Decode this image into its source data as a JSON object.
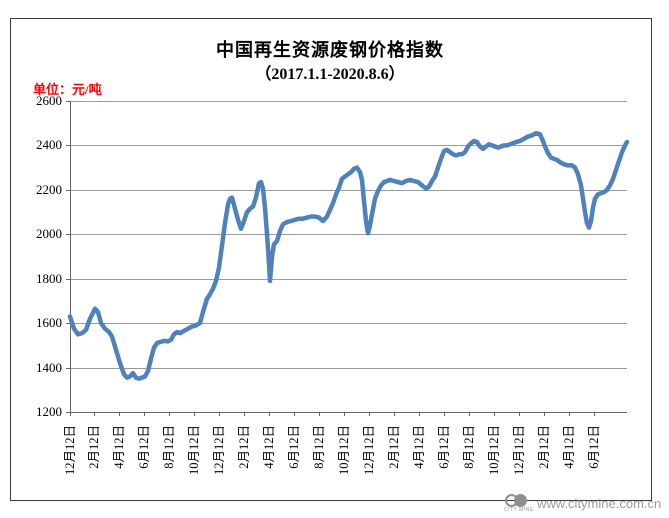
{
  "title": {
    "line1": "中国再生资源废钢价格指数",
    "line2": "（2017.1.1-2020.8.6）"
  },
  "unit_label": "单位：元/吨",
  "unit_label_color": "#ff0000",
  "watermark": {
    "logo_text": "CITY MINE",
    "url": "www.citymine.com.cn"
  },
  "chart_data": {
    "type": "line",
    "title": "中国再生资源废钢价格指数",
    "subtitle": "（2017.1.1-2020.8.6）",
    "ylabel": "元/吨",
    "ylim": [
      1200,
      2600
    ],
    "y_ticks": [
      2600,
      2400,
      2200,
      2000,
      1800,
      1600,
      1400,
      1200
    ],
    "grid": "horizontal",
    "legend": "none",
    "line_color": "#4F81BD",
    "x_tick_labels": [
      "12月12日",
      "2月12日",
      "4月12日",
      "6月12日",
      "8月12日",
      "10月12日",
      "12月12日",
      "2月12日",
      "4月12日",
      "6月12日",
      "8月12日",
      "10月12日",
      "12月12日",
      "2月12日",
      "4月12日",
      "6月12日",
      "8月12日",
      "10月12日",
      "12月12日",
      "2月12日",
      "4月12日",
      "6月12日"
    ],
    "x_tick_positions": [
      0.0,
      0.0431,
      0.088,
      0.1329,
      0.1777,
      0.2226,
      0.2675,
      0.3124,
      0.3572,
      0.4022,
      0.447,
      0.4919,
      0.5368,
      0.5817,
      0.6266,
      0.6715,
      0.7164,
      0.7612,
      0.8061,
      0.851,
      0.8959,
      0.9408
    ],
    "series": [
      {
        "name": "废钢价格指数",
        "points": [
          [
            0.0,
            1630
          ],
          [
            0.0072,
            1575
          ],
          [
            0.0144,
            1550
          ],
          [
            0.0215,
            1555
          ],
          [
            0.0287,
            1570
          ],
          [
            0.0359,
            1620
          ],
          [
            0.0449,
            1665
          ],
          [
            0.0503,
            1650
          ],
          [
            0.0557,
            1600
          ],
          [
            0.0628,
            1575
          ],
          [
            0.07,
            1560
          ],
          [
            0.0754,
            1540
          ],
          [
            0.0826,
            1480
          ],
          [
            0.0898,
            1420
          ],
          [
            0.0969,
            1370
          ],
          [
            0.1023,
            1355
          ],
          [
            0.1077,
            1360
          ],
          [
            0.1131,
            1375
          ],
          [
            0.1185,
            1355
          ],
          [
            0.1239,
            1350
          ],
          [
            0.1293,
            1355
          ],
          [
            0.1347,
            1360
          ],
          [
            0.14,
            1385
          ],
          [
            0.1454,
            1440
          ],
          [
            0.1508,
            1490
          ],
          [
            0.1562,
            1510
          ],
          [
            0.1616,
            1515
          ],
          [
            0.1688,
            1520
          ],
          [
            0.176,
            1518
          ],
          [
            0.1813,
            1525
          ],
          [
            0.1867,
            1550
          ],
          [
            0.1921,
            1560
          ],
          [
            0.1975,
            1555
          ],
          [
            0.2047,
            1565
          ],
          [
            0.2118,
            1575
          ],
          [
            0.219,
            1585
          ],
          [
            0.2262,
            1590
          ],
          [
            0.2334,
            1600
          ],
          [
            0.2388,
            1650
          ],
          [
            0.246,
            1710
          ],
          [
            0.2513,
            1730
          ],
          [
            0.2567,
            1755
          ],
          [
            0.2621,
            1790
          ],
          [
            0.2675,
            1850
          ],
          [
            0.2729,
            1950
          ],
          [
            0.2783,
            2050
          ],
          [
            0.2837,
            2135
          ],
          [
            0.2873,
            2160
          ],
          [
            0.2909,
            2165
          ],
          [
            0.2962,
            2115
          ],
          [
            0.3016,
            2065
          ],
          [
            0.307,
            2025
          ],
          [
            0.3124,
            2060
          ],
          [
            0.3178,
            2100
          ],
          [
            0.3232,
            2115
          ],
          [
            0.3286,
            2125
          ],
          [
            0.3339,
            2165
          ],
          [
            0.3393,
            2230
          ],
          [
            0.3429,
            2235
          ],
          [
            0.3465,
            2205
          ],
          [
            0.3501,
            2120
          ],
          [
            0.3537,
            2000
          ],
          [
            0.3573,
            1870
          ],
          [
            0.3591,
            1790
          ],
          [
            0.3627,
            1900
          ],
          [
            0.3663,
            1955
          ],
          [
            0.3716,
            1970
          ],
          [
            0.377,
            2015
          ],
          [
            0.3824,
            2045
          ],
          [
            0.3896,
            2055
          ],
          [
            0.3968,
            2060
          ],
          [
            0.404,
            2065
          ],
          [
            0.4111,
            2070
          ],
          [
            0.4183,
            2070
          ],
          [
            0.4255,
            2075
          ],
          [
            0.4327,
            2080
          ],
          [
            0.4399,
            2080
          ],
          [
            0.447,
            2075
          ],
          [
            0.4542,
            2060
          ],
          [
            0.4614,
            2080
          ],
          [
            0.4668,
            2110
          ],
          [
            0.4722,
            2140
          ],
          [
            0.4776,
            2180
          ],
          [
            0.483,
            2210
          ],
          [
            0.4883,
            2250
          ],
          [
            0.4937,
            2260
          ],
          [
            0.4991,
            2270
          ],
          [
            0.5045,
            2280
          ],
          [
            0.5099,
            2295
          ],
          [
            0.5152,
            2300
          ],
          [
            0.5206,
            2280
          ],
          [
            0.5242,
            2245
          ],
          [
            0.5278,
            2150
          ],
          [
            0.5314,
            2060
          ],
          [
            0.535,
            2005
          ],
          [
            0.5386,
            2040
          ],
          [
            0.5422,
            2090
          ],
          [
            0.5475,
            2160
          ],
          [
            0.5529,
            2195
          ],
          [
            0.5583,
            2220
          ],
          [
            0.5637,
            2235
          ],
          [
            0.5691,
            2240
          ],
          [
            0.5745,
            2245
          ],
          [
            0.5817,
            2240
          ],
          [
            0.5888,
            2235
          ],
          [
            0.596,
            2230
          ],
          [
            0.6032,
            2240
          ],
          [
            0.6104,
            2245
          ],
          [
            0.6176,
            2240
          ],
          [
            0.6248,
            2235
          ],
          [
            0.6319,
            2220
          ],
          [
            0.6391,
            2205
          ],
          [
            0.6445,
            2215
          ],
          [
            0.6499,
            2240
          ],
          [
            0.6553,
            2260
          ],
          [
            0.6607,
            2300
          ],
          [
            0.6661,
            2340
          ],
          [
            0.6715,
            2375
          ],
          [
            0.6768,
            2380
          ],
          [
            0.6822,
            2370
          ],
          [
            0.6876,
            2360
          ],
          [
            0.693,
            2355
          ],
          [
            0.6984,
            2360
          ],
          [
            0.7038,
            2360
          ],
          [
            0.7092,
            2370
          ],
          [
            0.7145,
            2395
          ],
          [
            0.7199,
            2410
          ],
          [
            0.7253,
            2420
          ],
          [
            0.7307,
            2415
          ],
          [
            0.7361,
            2395
          ],
          [
            0.7415,
            2385
          ],
          [
            0.7468,
            2395
          ],
          [
            0.7522,
            2405
          ],
          [
            0.7576,
            2400
          ],
          [
            0.763,
            2395
          ],
          [
            0.7684,
            2390
          ],
          [
            0.7738,
            2395
          ],
          [
            0.7792,
            2400
          ],
          [
            0.7846,
            2400
          ],
          [
            0.7899,
            2405
          ],
          [
            0.7953,
            2410
          ],
          [
            0.8007,
            2415
          ],
          [
            0.8079,
            2420
          ],
          [
            0.8151,
            2430
          ],
          [
            0.8223,
            2440
          ],
          [
            0.8294,
            2445
          ],
          [
            0.8366,
            2455
          ],
          [
            0.8438,
            2450
          ],
          [
            0.8492,
            2420
          ],
          [
            0.8528,
            2395
          ],
          [
            0.8582,
            2365
          ],
          [
            0.8636,
            2345
          ],
          [
            0.869,
            2340
          ],
          [
            0.8743,
            2335
          ],
          [
            0.8797,
            2325
          ],
          [
            0.8869,
            2315
          ],
          [
            0.8941,
            2310
          ],
          [
            0.9013,
            2310
          ],
          [
            0.9066,
            2300
          ],
          [
            0.912,
            2270
          ],
          [
            0.9174,
            2220
          ],
          [
            0.921,
            2160
          ],
          [
            0.9246,
            2100
          ],
          [
            0.9282,
            2050
          ],
          [
            0.9318,
            2030
          ],
          [
            0.9354,
            2060
          ],
          [
            0.939,
            2120
          ],
          [
            0.9426,
            2160
          ],
          [
            0.948,
            2180
          ],
          [
            0.9533,
            2185
          ],
          [
            0.9587,
            2190
          ],
          [
            0.9641,
            2200
          ],
          [
            0.9695,
            2220
          ],
          [
            0.9749,
            2250
          ],
          [
            0.9803,
            2290
          ],
          [
            0.9856,
            2330
          ],
          [
            0.991,
            2370
          ],
          [
            0.9964,
            2400
          ],
          [
            1.0,
            2415
          ]
        ]
      }
    ]
  }
}
